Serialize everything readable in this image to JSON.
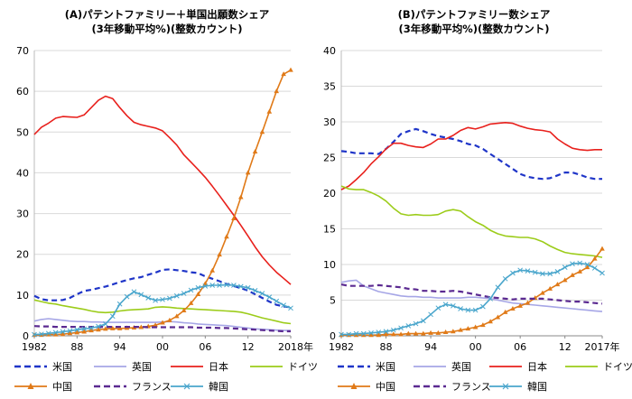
{
  "colors": {
    "us": "#1f35c8",
    "uk": "#a6a6e6",
    "jp": "#e8201c",
    "de": "#9ccc1a",
    "cn": "#e07a18",
    "fr": "#5b2a91",
    "kr": "#4aa6cc"
  },
  "legend": [
    {
      "key": "us",
      "label": "米国",
      "style": "dashed",
      "marker": "none"
    },
    {
      "key": "uk",
      "label": "英国",
      "style": "solid",
      "marker": "none"
    },
    {
      "key": "jp",
      "label": "日本",
      "style": "solid",
      "marker": "none"
    },
    {
      "key": "de",
      "label": "ドイツ",
      "style": "solid",
      "marker": "none"
    },
    {
      "key": "cn",
      "label": "中国",
      "style": "solid",
      "marker": "triangle"
    },
    {
      "key": "fr",
      "label": "フランス",
      "style": "dashed",
      "marker": "none"
    },
    {
      "key": "kr",
      "label": "韓国",
      "style": "solid",
      "marker": "x"
    }
  ],
  "chart_data": [
    {
      "type": "line",
      "title": "(A)パテントファミリー＋単国出願数シェア",
      "subtitle": "(3年移動平均%)(整数カウント)",
      "x_ticks": [
        "1982",
        "88",
        "94",
        "00",
        "06",
        "12",
        "2018"
      ],
      "x_tick_values": [
        1982,
        1988,
        1994,
        2000,
        2006,
        2012,
        2018
      ],
      "x_unit": "年",
      "xlim": [
        1982,
        2018
      ],
      "ylim": [
        0,
        70
      ],
      "y_ticks": [
        0,
        10,
        20,
        30,
        40,
        50,
        60,
        70
      ],
      "grid": true,
      "x": [
        1982,
        1983,
        1984,
        1985,
        1986,
        1987,
        1988,
        1989,
        1990,
        1991,
        1992,
        1993,
        1994,
        1995,
        1996,
        1997,
        1998,
        1999,
        2000,
        2001,
        2002,
        2003,
        2004,
        2005,
        2006,
        2007,
        2008,
        2009,
        2010,
        2011,
        2012,
        2013,
        2014,
        2015,
        2016,
        2017,
        2018
      ],
      "series": [
        {
          "key": "us",
          "name": "米国",
          "values": [
            9.8,
            9,
            8.7,
            8.7,
            8.8,
            9.3,
            10.2,
            11,
            11.3,
            11.7,
            12.1,
            12.6,
            13.2,
            13.7,
            14.1,
            14.4,
            15,
            15.5,
            16.2,
            16.3,
            16.1,
            15.9,
            15.6,
            15.4,
            14.6,
            14,
            13.4,
            12.7,
            12.2,
            11.7,
            11.1,
            10.2,
            9.3,
            8.4,
            7.6,
            7.2,
            7
          ]
        },
        {
          "key": "uk",
          "name": "英国",
          "values": [
            3.6,
            4,
            4.2,
            4,
            3.8,
            3.6,
            3.5,
            3.5,
            3.4,
            3.4,
            3.3,
            3.3,
            3.3,
            3.3,
            3.3,
            3.3,
            3.3,
            3.3,
            3.4,
            3.5,
            3.4,
            3.2,
            3.1,
            2.9,
            2.8,
            2.7,
            2.6,
            2.5,
            2.3,
            2.1,
            1.9,
            1.7,
            1.6,
            1.5,
            1.4,
            1.3,
            1.3
          ]
        },
        {
          "key": "jp",
          "name": "日本",
          "values": [
            49.4,
            51.2,
            52.2,
            53.4,
            53.8,
            53.7,
            53.6,
            54.2,
            56,
            57.8,
            58.8,
            58.2,
            56,
            54,
            52.4,
            51.8,
            51.4,
            51,
            50.3,
            48.6,
            46.8,
            44.4,
            42.6,
            40.8,
            38.9,
            36.7,
            34.4,
            32,
            29.6,
            27.1,
            24.5,
            21.8,
            19.4,
            17.4,
            15.6,
            14.1,
            12.6
          ]
        },
        {
          "key": "de",
          "name": "ドイツ",
          "values": [
            8.8,
            8.4,
            8,
            7.8,
            7.4,
            7.1,
            6.8,
            6.5,
            6.1,
            5.8,
            5.7,
            5.8,
            6.1,
            6.3,
            6.4,
            6.5,
            6.6,
            7,
            7.1,
            7,
            6.8,
            6.7,
            6.6,
            6.5,
            6.4,
            6.3,
            6.2,
            6.1,
            6,
            5.8,
            5.4,
            4.9,
            4.4,
            4,
            3.6,
            3.2,
            3
          ]
        },
        {
          "key": "cn",
          "name": "中国",
          "values": [
            0.2,
            0.2,
            0.3,
            0.3,
            0.4,
            0.6,
            0.8,
            1,
            1.3,
            1.5,
            1.7,
            1.8,
            1.8,
            1.9,
            2,
            2.1,
            2.3,
            2.6,
            3.2,
            3.8,
            4.8,
            6.2,
            8,
            10.2,
            12.8,
            16,
            19.9,
            24.3,
            28.8,
            34,
            40,
            45.2,
            50,
            55,
            60,
            64.2,
            65.2
          ]
        },
        {
          "key": "fr",
          "name": "フランス",
          "values": [
            2.4,
            2.3,
            2.3,
            2.2,
            2.2,
            2.2,
            2.2,
            2.2,
            2.2,
            2.2,
            2.2,
            2.2,
            2.2,
            2.2,
            2.2,
            2.2,
            2.1,
            2.1,
            2.1,
            2.1,
            2.1,
            2.1,
            2.1,
            2,
            2,
            2,
            1.9,
            1.9,
            1.8,
            1.7,
            1.6,
            1.5,
            1.4,
            1.3,
            1.2,
            1.1,
            1.1
          ]
        },
        {
          "key": "kr",
          "name": "韓国",
          "values": [
            0.3,
            0.4,
            0.6,
            0.8,
            1,
            1.2,
            1.5,
            1.7,
            1.9,
            2.3,
            2.9,
            4.8,
            7.8,
            9.6,
            10.8,
            10.1,
            9.3,
            8.7,
            8.9,
            9.2,
            9.8,
            10.4,
            11.2,
            11.8,
            12.2,
            12.4,
            12.4,
            12.5,
            12.4,
            12.1,
            11.8,
            11.1,
            10.4,
            9.5,
            8.5,
            7.5,
            6.8
          ]
        }
      ]
    },
    {
      "type": "line",
      "title": "(B)パテントファミリー数シェア",
      "subtitle": "(3年移動平均%)(整数カウント)",
      "x_ticks": [
        "1982",
        "88",
        "94",
        "00",
        "06",
        "12",
        "2017年"
      ],
      "x_tick_values": [
        1982,
        1988,
        1994,
        2000,
        2006,
        2012,
        2017
      ],
      "xlim": [
        1982,
        2017
      ],
      "ylim": [
        0,
        40
      ],
      "y_ticks": [
        0,
        5,
        10,
        15,
        20,
        25,
        30,
        35,
        40
      ],
      "grid": true,
      "x": [
        1982,
        1983,
        1984,
        1985,
        1986,
        1987,
        1988,
        1989,
        1990,
        1991,
        1992,
        1993,
        1994,
        1995,
        1996,
        1997,
        1998,
        1999,
        2000,
        2001,
        2002,
        2003,
        2004,
        2005,
        2006,
        2007,
        2008,
        2009,
        2010,
        2011,
        2012,
        2013,
        2014,
        2015,
        2016,
        2017
      ],
      "series": [
        {
          "key": "us",
          "name": "米国",
          "values": [
            25.9,
            25.8,
            25.6,
            25.6,
            25.6,
            25.5,
            26.2,
            27.2,
            28.3,
            28.7,
            29,
            28.7,
            28.3,
            28,
            27.8,
            27.6,
            27.3,
            26.9,
            26.7,
            26.2,
            25.5,
            24.8,
            24.1,
            23.4,
            22.7,
            22.3,
            22.1,
            22,
            22.1,
            22.5,
            22.9,
            22.9,
            22.6,
            22.2,
            22,
            22
          ]
        },
        {
          "key": "uk",
          "name": "英国",
          "values": [
            7.5,
            7.7,
            7.8,
            7,
            6.6,
            6.2,
            6,
            5.8,
            5.6,
            5.5,
            5.5,
            5.4,
            5.4,
            5.3,
            5.3,
            5.3,
            5.3,
            5.4,
            5.4,
            5.3,
            5.2,
            5,
            4.8,
            4.6,
            4.5,
            4.4,
            4.3,
            4.2,
            4.1,
            4,
            3.9,
            3.8,
            3.7,
            3.6,
            3.5,
            3.4
          ]
        },
        {
          "key": "jp",
          "name": "日本",
          "values": [
            20.5,
            21,
            21.9,
            22.9,
            24.1,
            25.1,
            26.2,
            27,
            27,
            26.7,
            26.5,
            26.4,
            26.9,
            27.6,
            27.6,
            28.1,
            28.8,
            29.2,
            29,
            29.3,
            29.7,
            29.8,
            29.9,
            29.8,
            29.4,
            29.1,
            28.9,
            28.8,
            28.6,
            27.6,
            26.9,
            26.3,
            26.1,
            26,
            26.1,
            26.1
          ]
        },
        {
          "key": "de",
          "name": "ドイツ",
          "values": [
            21,
            20.6,
            20.5,
            20.5,
            20.1,
            19.6,
            18.9,
            17.9,
            17.1,
            16.9,
            17,
            16.9,
            16.9,
            17,
            17.5,
            17.7,
            17.5,
            16.7,
            16,
            15.5,
            14.8,
            14.3,
            14,
            13.9,
            13.8,
            13.8,
            13.6,
            13.2,
            12.6,
            12.1,
            11.7,
            11.5,
            11.4,
            11.3,
            11.2,
            11
          ]
        },
        {
          "key": "cn",
          "name": "中国",
          "values": [
            0.1,
            0.1,
            0.1,
            0.1,
            0.1,
            0.1,
            0.2,
            0.2,
            0.2,
            0.3,
            0.3,
            0.3,
            0.4,
            0.4,
            0.5,
            0.6,
            0.8,
            1,
            1.2,
            1.5,
            2,
            2.6,
            3.3,
            3.8,
            4.2,
            4.6,
            5.3,
            6,
            6.6,
            7.2,
            7.8,
            8.5,
            9,
            9.6,
            10.8,
            12.2
          ]
        },
        {
          "key": "fr",
          "name": "フランス",
          "values": [
            7.2,
            7,
            7,
            7,
            7,
            7.1,
            7,
            6.9,
            6.8,
            6.6,
            6.5,
            6.3,
            6.3,
            6.2,
            6.2,
            6.3,
            6.2,
            6,
            5.8,
            5.6,
            5.4,
            5.3,
            5.2,
            5.1,
            5.2,
            5.2,
            5.2,
            5.2,
            5.1,
            5,
            4.9,
            4.8,
            4.8,
            4.7,
            4.6,
            4.5
          ]
        },
        {
          "key": "kr",
          "name": "韓国",
          "values": [
            0.2,
            0.2,
            0.3,
            0.3,
            0.4,
            0.5,
            0.6,
            0.8,
            1.1,
            1.4,
            1.7,
            2.1,
            3,
            3.9,
            4.4,
            4.2,
            3.8,
            3.6,
            3.6,
            4.1,
            5.2,
            6.8,
            8,
            8.8,
            9.2,
            9.1,
            8.9,
            8.7,
            8.7,
            9,
            9.6,
            10.1,
            10.2,
            10,
            9.5,
            8.8
          ]
        }
      ]
    }
  ]
}
